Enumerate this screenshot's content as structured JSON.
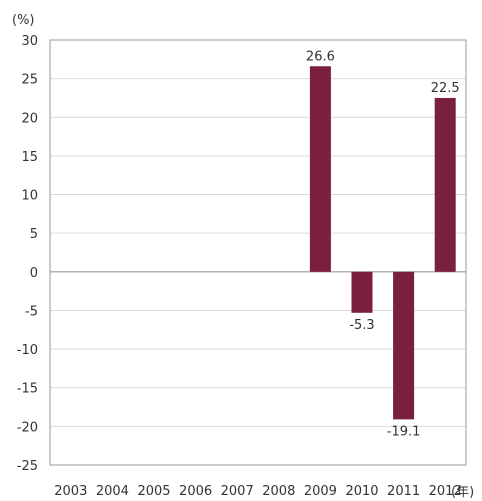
{
  "chart_data": {
    "type": "bar",
    "title": "",
    "ylabel": "(%)",
    "xlabel": "(年)",
    "categories": [
      "2003",
      "2004",
      "2005",
      "2006",
      "2007",
      "2008",
      "2009",
      "2010",
      "2011",
      "2012"
    ],
    "values": [
      0,
      0,
      0,
      0,
      0,
      0,
      26.6,
      -5.3,
      -19.1,
      22.5
    ],
    "data_labels": [
      "",
      "",
      "",
      "",
      "",
      "",
      "26.6",
      "-5.3",
      "-19.1",
      "22.5"
    ],
    "ylim": [
      -25,
      30
    ],
    "yticks": [
      30,
      25,
      20,
      15,
      10,
      5,
      0,
      -5,
      -10,
      -15,
      -20,
      -25
    ],
    "grid": true,
    "legend": "none",
    "bar_color": "#7a1f3d",
    "grid_color": "#d9d9d9",
    "zero_line_color": "#9a9a9a"
  }
}
